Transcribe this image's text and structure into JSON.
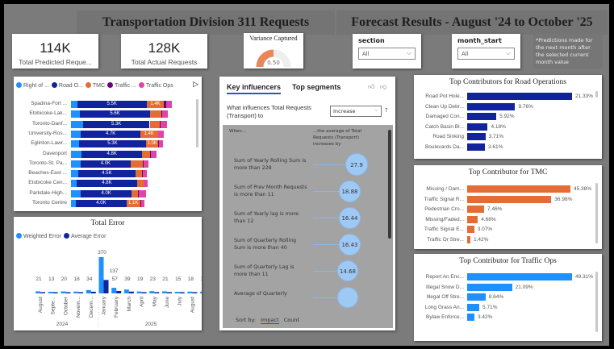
{
  "header": {
    "title_left": "Transportation Division 311 Requests",
    "title_right": "Forecast Results - August '24 to October '25"
  },
  "kpis": [
    {
      "value": "114K",
      "label": "Total Predicted Reque..."
    },
    {
      "value": "128K",
      "label": "Total Actual Requests"
    }
  ],
  "gauge": {
    "title": "Variance Captured",
    "value": 0.5,
    "value_label": "0.50",
    "fill_color": "#e8875a"
  },
  "slicers": [
    {
      "title": "section",
      "value": "All"
    },
    {
      "title": "month_start",
      "value": "All"
    }
  ],
  "note": "*Predictions made for the next month after the selected current month value",
  "stacked_chart": {
    "type": "bar",
    "legend": [
      "Right of ...",
      "Road O...",
      "TMC",
      "Traffic ...",
      "Traffic Ops"
    ],
    "colors": [
      "#1e90ff",
      "#12239e",
      "#e66c37",
      "#6b007b",
      "#e044a7"
    ],
    "categories": [
      "Spadina-Fort ...",
      "Etobicoke-Lak...",
      "Toronto-Danf...",
      "University-Ros...",
      "Eglinton-Lawr...",
      "Davenport",
      "Toronto-St. Pa...",
      "Beaches-East ...",
      "Etobicoke Cen...",
      "Parkdale-High...",
      "Toronto Centre"
    ],
    "values_k": [
      [
        0.5,
        5.5,
        1.4,
        0.15,
        0.45
      ],
      [
        0.7,
        5.6,
        0.85,
        0.1,
        0.45
      ],
      [
        0.95,
        5.3,
        0.8,
        0.05,
        0.5
      ],
      [
        0.8,
        4.7,
        1.4,
        0.05,
        0.45
      ],
      [
        0.65,
        5.3,
        1.0,
        0.05,
        0.3
      ],
      [
        0.85,
        4.8,
        0.65,
        0.05,
        0.45
      ],
      [
        0.75,
        4.0,
        0.95,
        0.05,
        0.4
      ],
      [
        0.6,
        4.5,
        0.55,
        0.05,
        0.35
      ],
      [
        0.45,
        4.8,
        0.5,
        0.05,
        0.3
      ],
      [
        0.8,
        4.0,
        0.55,
        0.05,
        0.55
      ],
      [
        0.4,
        4.0,
        1.1,
        0.05,
        0.3
      ]
    ],
    "data_labels": [
      [
        "",
        "5.5K",
        "1.4K",
        "",
        ""
      ],
      [
        "",
        "5.6K",
        "",
        "",
        ""
      ],
      [
        "",
        "5.3K",
        "",
        "",
        ""
      ],
      [
        "",
        "4.7K",
        "1.4K",
        "",
        ""
      ],
      [
        "",
        "5.3K",
        "1.0K",
        "",
        ""
      ],
      [
        "",
        "4.8K",
        "",
        "",
        ""
      ],
      [
        "",
        "4.0K",
        "",
        "",
        ""
      ],
      [
        "",
        "4.5K",
        "",
        "",
        ""
      ],
      [
        "",
        "4.8K",
        "",
        "",
        ""
      ],
      [
        "",
        "4.0K",
        "",
        "",
        ""
      ],
      [
        "",
        "4.0K",
        "1.1K",
        "",
        ""
      ]
    ]
  },
  "error_chart": {
    "type": "bar",
    "title": "Total Error",
    "legend": [
      "Weighted Error",
      "Average Error"
    ],
    "colors": [
      "#1e90ff",
      "#12239e"
    ],
    "categories": [
      "August",
      "Septe...",
      "October",
      "Novem...",
      "Decem...",
      "January",
      "February",
      "March",
      "April",
      "May",
      "June",
      "July",
      "August",
      "Septe..."
    ],
    "years": [
      "2024",
      "2025"
    ],
    "weighted": [
      21,
      13,
      20,
      18,
      34,
      370,
      57,
      39,
      19,
      23,
      21,
      15,
      18,
      18
    ],
    "average": [
      10,
      8,
      10,
      9,
      17,
      137,
      25,
      18,
      9,
      11,
      10,
      8,
      9,
      9
    ],
    "labels": [
      "21",
      "13",
      "20",
      "18",
      "34",
      "370",
      "57",
      "39",
      "19",
      "23",
      "21",
      "15",
      "18",
      "18"
    ],
    "avg_label_jan": "137"
  },
  "key_influencers": {
    "tabs": [
      "Key influencers",
      "Top segments"
    ],
    "question": "What influences Total Requests (Transport) to",
    "dropdown": "Increase",
    "help": "?",
    "col_when": "When...",
    "col_avg": "...the average of Total Requests (Transport) increases by",
    "items": [
      {
        "text": "Sum of Yearly Rolling Sum is more than 228",
        "value": "27.9"
      },
      {
        "text": "Sum of Prev Month Requests is more than 11",
        "value": "18.88"
      },
      {
        "text": "Sum of Yearly lag is more than 12",
        "value": "16.44"
      },
      {
        "text": "Sum of Quarterly Rolling Sum is more than 40",
        "value": "16.43"
      },
      {
        "text": "Sum of Quarterly Lag is more than 11",
        "value": "14.68"
      },
      {
        "text": "Average of Quarterly",
        "value": ""
      }
    ],
    "sort_by": "Sort by:",
    "sort_impact": "Impact",
    "sort_count": "Count"
  },
  "contributors": [
    {
      "title": "Top Contributors for Road Operations",
      "color": "#12239e",
      "items": [
        [
          "Road Pot Hole...",
          21.33,
          "21.33%"
        ],
        [
          "Clean Up Debr...",
          9.76,
          "9.76%"
        ],
        [
          "Damaged Con...",
          5.92,
          "5.92%"
        ],
        [
          "Catch Basin Bl...",
          4.18,
          "4.18%"
        ],
        [
          "Road Sinking",
          3.71,
          "3.71%"
        ],
        [
          "Boulevards Da...",
          3.61,
          "3.61%"
        ]
      ]
    },
    {
      "title": "Top Contributor for TMC",
      "color": "#e66c37",
      "items": [
        [
          "Missing / Dam...",
          45.38,
          "45.38%"
        ],
        [
          "Traffic Signal R...",
          36.98,
          "36.98%"
        ],
        [
          "Pedestrian Cro...",
          7.46,
          "7.46%"
        ],
        [
          "Missing/Faded...",
          4.68,
          "4.68%"
        ],
        [
          "Traffic Signal E...",
          3.07,
          "3.07%"
        ],
        [
          "Traffic Or Stre...",
          1.42,
          "1.42%"
        ]
      ]
    },
    {
      "title": "Top Contributor for Traffic Ops",
      "color": "#1e90ff",
      "items": [
        [
          "Report An Enc...",
          49.31,
          "49.31%"
        ],
        [
          "Illegal Snow D...",
          21.09,
          "21.09%"
        ],
        [
          "Illegal Off Stre...",
          8.64,
          "8.64%"
        ],
        [
          "Long Grass An...",
          5.71,
          "5.71%"
        ],
        [
          "Bylaw Enforce...",
          3.42,
          "3.42%"
        ]
      ]
    }
  ]
}
